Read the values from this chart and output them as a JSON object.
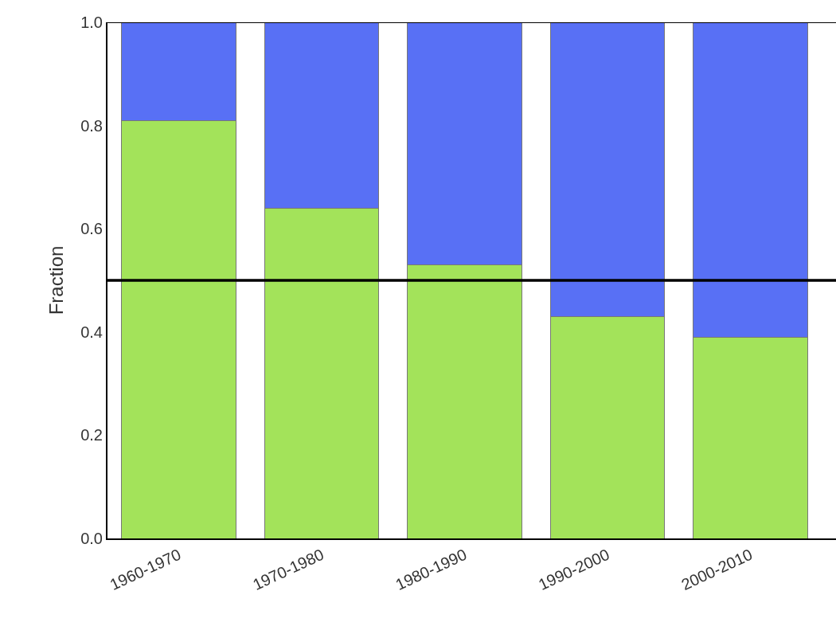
{
  "chart_data": {
    "type": "bar",
    "stacked": true,
    "ylabel": "Fraction",
    "categories": [
      "1960-1970",
      "1970-1980",
      "1980-1990",
      "1990-2000",
      "2000-2010"
    ],
    "series": [
      {
        "color": "#a3e35a",
        "values": [
          0.81,
          0.64,
          0.53,
          0.43,
          0.39
        ]
      },
      {
        "color": "#5870f5",
        "values": [
          0.19,
          0.36,
          0.47,
          0.57,
          0.61
        ]
      }
    ],
    "ylim": [
      0,
      1.0
    ],
    "yticks": [
      {
        "value": 0,
        "label": "0.0"
      },
      0.2,
      0.4,
      0.6,
      0.8,
      {
        "value": 1,
        "label": "1.0"
      }
    ],
    "ref_lines": [
      {
        "axis": "y",
        "value": 0.5,
        "color": "#000000",
        "line_style": "solid"
      }
    ]
  }
}
